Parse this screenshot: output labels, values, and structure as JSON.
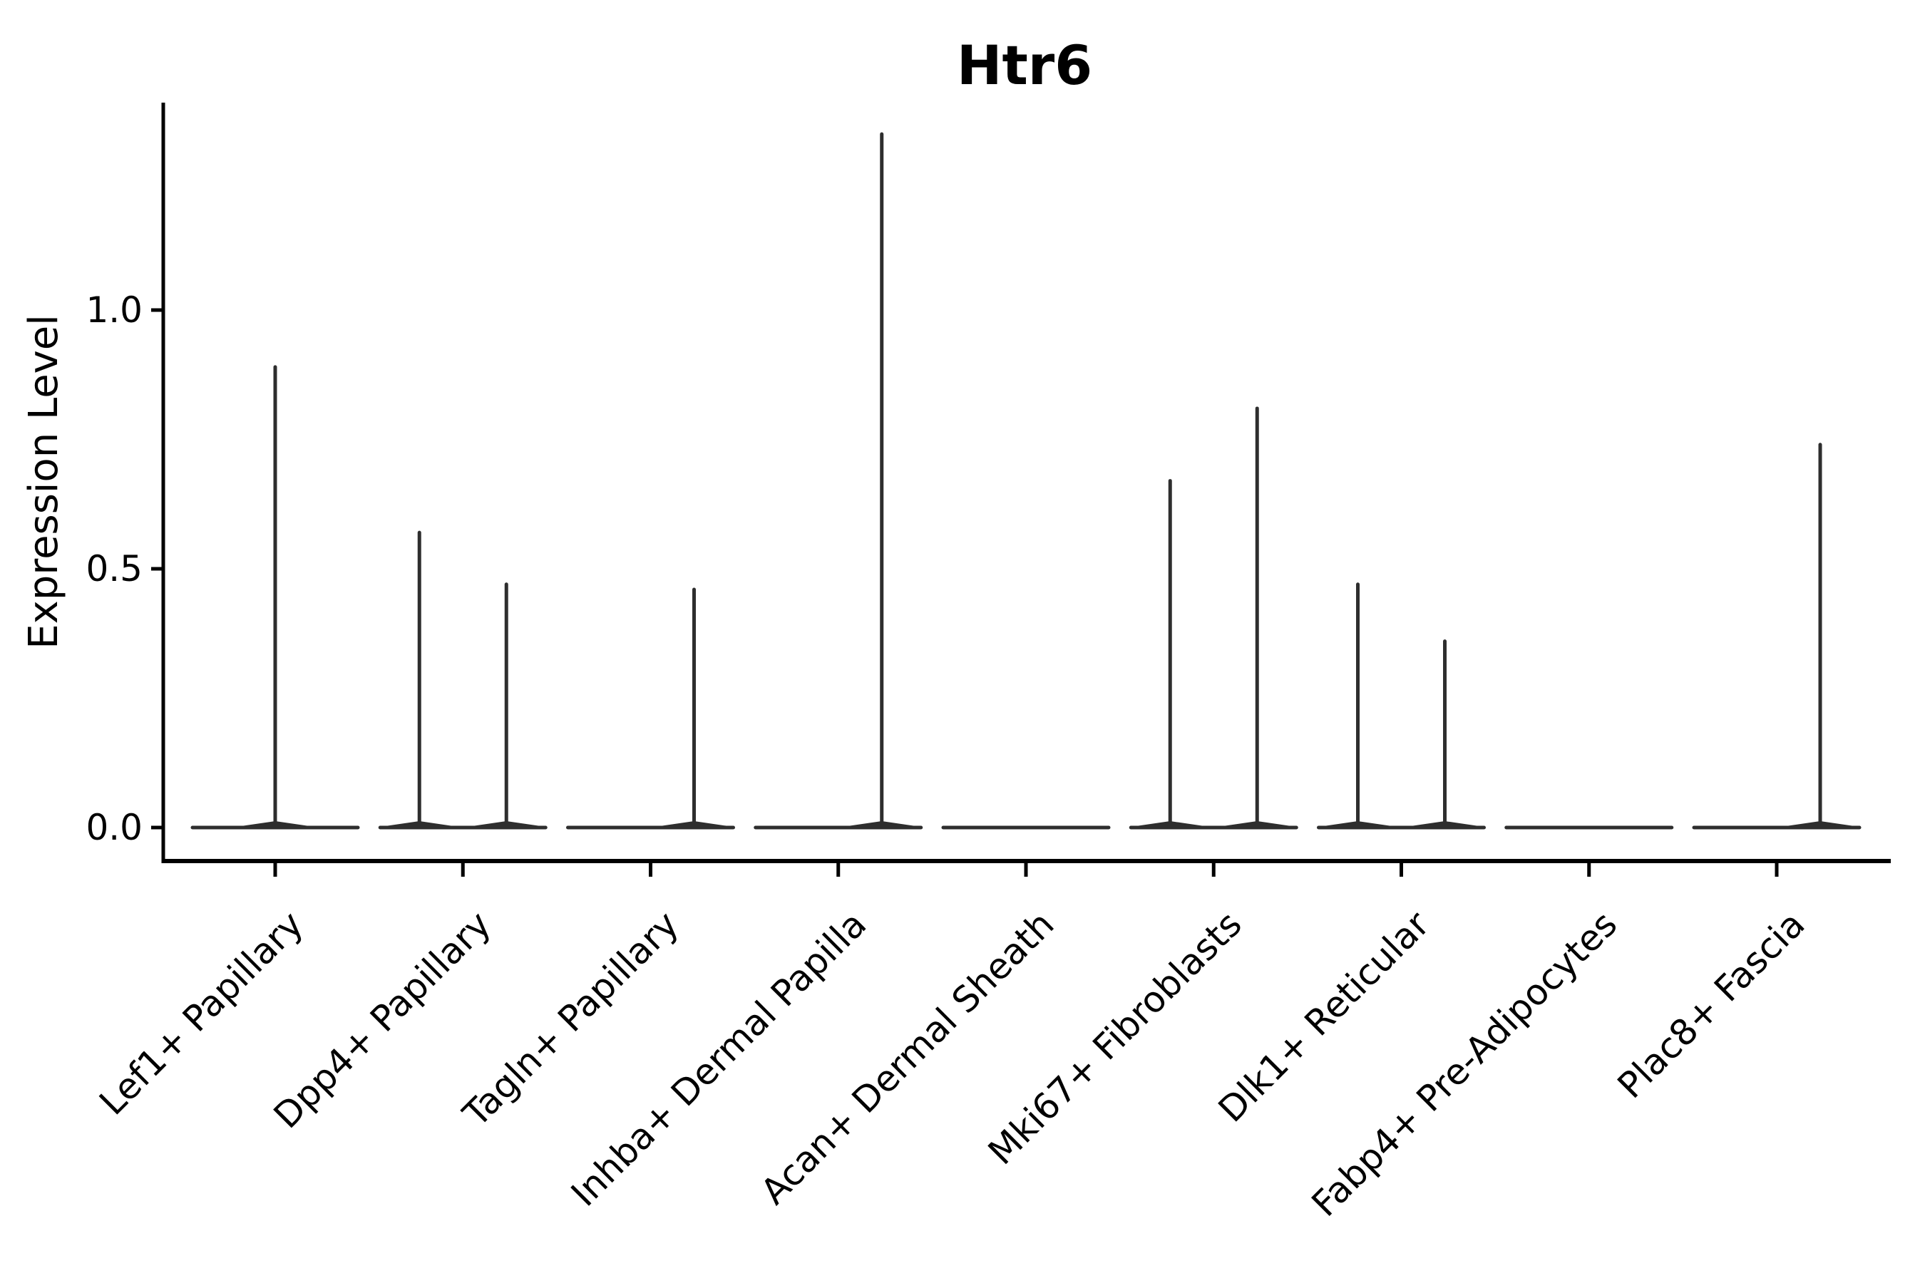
{
  "title": "Htr6",
  "axes": {
    "y_label": "Expression Level",
    "y_ticks": [
      {
        "label": "0.0",
        "value": 0.0
      },
      {
        "label": "0.5",
        "value": 0.5
      },
      {
        "label": "1.0",
        "value": 1.0
      }
    ],
    "x_categories": [
      "Lef1+ Papillary",
      "Dpp4+ Papillary",
      "Tagln+ Papillary",
      "Inhba+ Dermal Papilla",
      "Acan+ Dermal Sheath",
      "Mki67+ Fibroblasts",
      "Dlk1+ Reticular",
      "Fabp4+ Pre-Adipocytes",
      "Plac8+ Fascia"
    ]
  },
  "style": {
    "violin_color": "#2e2e2e",
    "axis_color": "#000000",
    "background": "#ffffff"
  },
  "chart_data": {
    "type": "violin",
    "title": "Htr6",
    "xlabel": "",
    "ylabel": "Expression Level",
    "ylim": [
      0,
      1.4
    ],
    "grid": false,
    "legend": "none",
    "baseline_value": 0.0,
    "description": "Flat zero-density violins with thin spikes up to the max expression value; some categories contain two side-by-side violins",
    "categories": [
      "Lef1+ Papillary",
      "Dpp4+ Papillary",
      "Tagln+ Papillary",
      "Inhba+ Dermal Papilla",
      "Acan+ Dermal Sheath",
      "Mki67+ Fibroblasts",
      "Dlk1+ Reticular",
      "Fabp4+ Pre-Adipocytes",
      "Plac8+ Fascia"
    ],
    "violins": [
      {
        "category": "Lef1+ Papillary",
        "spikes": [
          {
            "side": "center",
            "max": 0.89
          }
        ]
      },
      {
        "category": "Dpp4+ Papillary",
        "spikes": [
          {
            "side": "left",
            "max": 0.57
          },
          {
            "side": "right",
            "max": 0.47
          }
        ]
      },
      {
        "category": "Tagln+ Papillary",
        "spikes": [
          {
            "side": "right",
            "max": 0.46
          }
        ]
      },
      {
        "category": "Inhba+ Dermal Papilla",
        "spikes": [
          {
            "side": "right",
            "max": 1.34
          }
        ]
      },
      {
        "category": "Acan+ Dermal Sheath",
        "spikes": []
      },
      {
        "category": "Mki67+ Fibroblasts",
        "spikes": [
          {
            "side": "left",
            "max": 0.67
          },
          {
            "side": "right",
            "max": 0.81
          }
        ]
      },
      {
        "category": "Dlk1+ Reticular",
        "spikes": [
          {
            "side": "left",
            "max": 0.47
          },
          {
            "side": "right",
            "max": 0.36
          }
        ]
      },
      {
        "category": "Fabp4+ Pre-Adipocytes",
        "spikes": []
      },
      {
        "category": "Plac8+ Fascia",
        "spikes": [
          {
            "side": "right",
            "max": 0.74
          }
        ]
      }
    ]
  }
}
